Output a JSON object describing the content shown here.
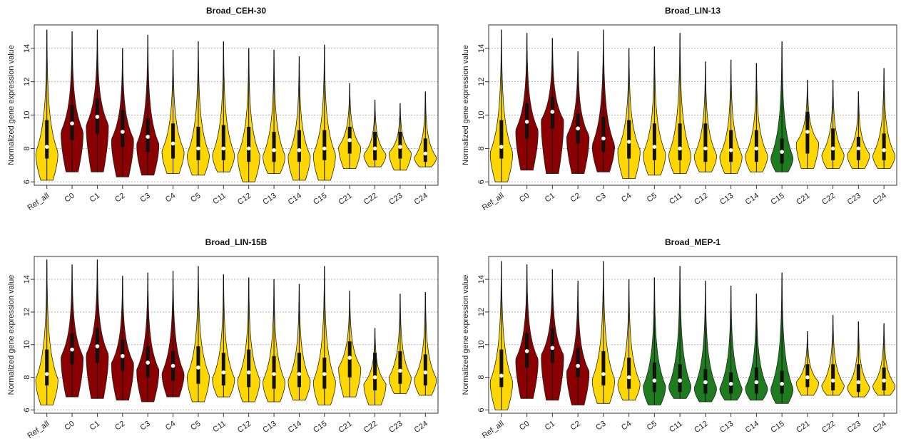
{
  "colors": {
    "yellow": "#FFD700",
    "red": "#8B0000",
    "green": "#1E7B1E",
    "box": "#111111",
    "median": "#ffffff",
    "grid": "#aaaaaa"
  },
  "chart_data": [
    {
      "type": "violin",
      "title": "Broad_CEH-30",
      "ylabel": "Normalized gene expression value",
      "ylim": [
        5.8,
        15.4
      ],
      "yticks": [
        6,
        8,
        10,
        12,
        14
      ],
      "grid": "horizontal dotted",
      "categories": [
        "Ref_all",
        "C0",
        "C1",
        "C2",
        "C3",
        "C4",
        "C5",
        "C11",
        "C12",
        "C13",
        "C14",
        "C15",
        "C21",
        "C22",
        "C23",
        "C24"
      ],
      "fill": [
        "yellow",
        "red",
        "red",
        "red",
        "red",
        "yellow",
        "yellow",
        "yellow",
        "yellow",
        "yellow",
        "yellow",
        "yellow",
        "yellow",
        "yellow",
        "yellow",
        "yellow"
      ],
      "min": [
        6.1,
        6.6,
        6.6,
        6.3,
        6.4,
        6.5,
        6.4,
        6.6,
        6.0,
        6.5,
        6.1,
        6.1,
        6.8,
        6.9,
        6.7,
        6.9
      ],
      "max": [
        15.1,
        15.0,
        15.1,
        14.0,
        14.8,
        13.9,
        14.4,
        14.4,
        14.0,
        13.9,
        13.5,
        14.2,
        11.9,
        10.9,
        10.7,
        11.4
      ],
      "median": [
        8.1,
        9.5,
        9.9,
        9.0,
        8.7,
        8.3,
        8.0,
        8.0,
        8.0,
        7.9,
        7.9,
        8.0,
        8.5,
        8.0,
        8.1,
        7.7
      ],
      "q1": [
        7.4,
        8.5,
        8.9,
        8.1,
        7.8,
        7.4,
        7.3,
        7.3,
        7.2,
        7.2,
        7.2,
        7.3,
        7.7,
        7.3,
        7.4,
        7.2
      ],
      "q3": [
        9.7,
        10.6,
        11.0,
        10.3,
        9.8,
        9.5,
        9.3,
        9.4,
        9.3,
        9.0,
        9.1,
        9.1,
        9.3,
        9.0,
        9.0,
        8.6
      ]
    },
    {
      "type": "violin",
      "title": "Broad_LIN-13",
      "ylabel": "Normalized gene expression value",
      "ylim": [
        5.8,
        15.4
      ],
      "yticks": [
        6,
        8,
        10,
        12,
        14
      ],
      "grid": "horizontal dotted",
      "categories": [
        "Ref_all",
        "C0",
        "C1",
        "C2",
        "C3",
        "C4",
        "C5",
        "C11",
        "C12",
        "C13",
        "C14",
        "C15",
        "C21",
        "C22",
        "C23",
        "C24"
      ],
      "fill": [
        "yellow",
        "red",
        "red",
        "red",
        "red",
        "yellow",
        "yellow",
        "yellow",
        "yellow",
        "yellow",
        "yellow",
        "green",
        "yellow",
        "yellow",
        "yellow",
        "yellow"
      ],
      "min": [
        6.0,
        6.7,
        6.5,
        6.5,
        6.6,
        6.2,
        6.4,
        6.5,
        6.6,
        6.5,
        6.6,
        6.6,
        6.8,
        6.8,
        6.8,
        6.8
      ],
      "max": [
        15.1,
        14.9,
        14.6,
        13.8,
        15.1,
        14.0,
        14.1,
        14.9,
        13.2,
        13.3,
        13.1,
        14.4,
        12.1,
        12.1,
        11.4,
        12.8
      ],
      "median": [
        8.1,
        9.6,
        10.2,
        9.2,
        8.6,
        8.4,
        8.1,
        8.0,
        8.0,
        7.9,
        8.0,
        7.8,
        9.0,
        8.0,
        8.0,
        7.9
      ],
      "q1": [
        7.4,
        8.6,
        9.2,
        8.3,
        7.8,
        7.4,
        7.3,
        7.3,
        7.2,
        7.2,
        7.2,
        7.1,
        7.7,
        7.3,
        7.3,
        7.3
      ],
      "q3": [
        9.7,
        10.7,
        11.1,
        10.1,
        9.9,
        9.7,
        9.5,
        9.5,
        9.5,
        9.1,
        9.1,
        8.6,
        10.2,
        9.2,
        8.7,
        8.9
      ]
    },
    {
      "type": "violin",
      "title": "Broad_LIN-15B",
      "ylabel": "Normalized gene expression value",
      "ylim": [
        5.8,
        15.4
      ],
      "yticks": [
        6,
        8,
        10,
        12,
        14
      ],
      "grid": "horizontal dotted",
      "categories": [
        "Ref_all",
        "C0",
        "C1",
        "C2",
        "C3",
        "C4",
        "C5",
        "C11",
        "C12",
        "C13",
        "C14",
        "C15",
        "C21",
        "C22",
        "C23",
        "C24"
      ],
      "fill": [
        "yellow",
        "red",
        "red",
        "red",
        "red",
        "red",
        "yellow",
        "yellow",
        "yellow",
        "yellow",
        "yellow",
        "yellow",
        "yellow",
        "yellow",
        "yellow",
        "yellow"
      ],
      "min": [
        6.3,
        6.8,
        6.7,
        6.6,
        6.5,
        6.8,
        6.5,
        6.8,
        6.5,
        6.5,
        6.6,
        6.3,
        6.8,
        6.3,
        7.0,
        6.9
      ],
      "max": [
        15.2,
        14.9,
        15.2,
        14.2,
        14.4,
        14.5,
        14.8,
        14.3,
        14.1,
        14.0,
        13.7,
        14.8,
        13.3,
        11.0,
        13.1,
        13.2
      ],
      "median": [
        8.2,
        9.7,
        9.9,
        9.3,
        8.9,
        8.7,
        8.6,
        8.3,
        8.3,
        8.2,
        8.2,
        8.2,
        9.2,
        8.0,
        8.4,
        8.3
      ],
      "q1": [
        7.5,
        8.8,
        8.9,
        8.4,
        8.0,
        7.8,
        7.6,
        7.5,
        7.4,
        7.3,
        7.4,
        7.3,
        8.0,
        7.2,
        7.6,
        7.5
      ],
      "q3": [
        9.7,
        10.7,
        11.0,
        10.3,
        9.9,
        9.6,
        9.9,
        9.5,
        9.7,
        9.3,
        9.5,
        9.2,
        10.2,
        9.5,
        9.6,
        9.4
      ]
    },
    {
      "type": "violin",
      "title": "Broad_MEP-1",
      "ylabel": "Normalized gene expression value",
      "ylim": [
        5.8,
        15.4
      ],
      "yticks": [
        6,
        8,
        10,
        12,
        14
      ],
      "grid": "horizontal dotted",
      "categories": [
        "Ref_all",
        "C0",
        "C1",
        "C2",
        "C3",
        "C4",
        "C5",
        "C11",
        "C12",
        "C13",
        "C14",
        "C15",
        "C21",
        "C22",
        "C23",
        "C24"
      ],
      "fill": [
        "yellow",
        "red",
        "red",
        "red",
        "yellow",
        "yellow",
        "green",
        "green",
        "green",
        "green",
        "green",
        "green",
        "yellow",
        "yellow",
        "yellow",
        "yellow"
      ],
      "min": [
        6.0,
        6.7,
        6.6,
        6.3,
        6.4,
        6.6,
        6.3,
        6.7,
        6.5,
        6.6,
        6.6,
        6.4,
        6.9,
        6.9,
        6.8,
        6.9
      ],
      "max": [
        15.1,
        14.9,
        14.6,
        13.9,
        15.1,
        14.0,
        14.1,
        14.8,
        13.9,
        13.6,
        13.1,
        14.4,
        10.8,
        11.8,
        11.4,
        11.3
      ],
      "median": [
        8.1,
        9.6,
        9.8,
        8.7,
        8.2,
        8.0,
        7.8,
        7.8,
        7.7,
        7.6,
        7.7,
        7.6,
        8.0,
        7.8,
        7.7,
        7.8
      ],
      "q1": [
        7.4,
        8.6,
        8.9,
        8.0,
        7.5,
        7.3,
        7.1,
        7.1,
        7.0,
        7.0,
        7.0,
        7.0,
        7.4,
        7.2,
        7.1,
        7.2
      ],
      "q3": [
        9.7,
        10.7,
        11.0,
        9.8,
        9.6,
        9.2,
        8.9,
        8.8,
        8.5,
        8.3,
        8.6,
        8.4,
        8.8,
        8.8,
        8.8,
        8.6
      ]
    }
  ]
}
